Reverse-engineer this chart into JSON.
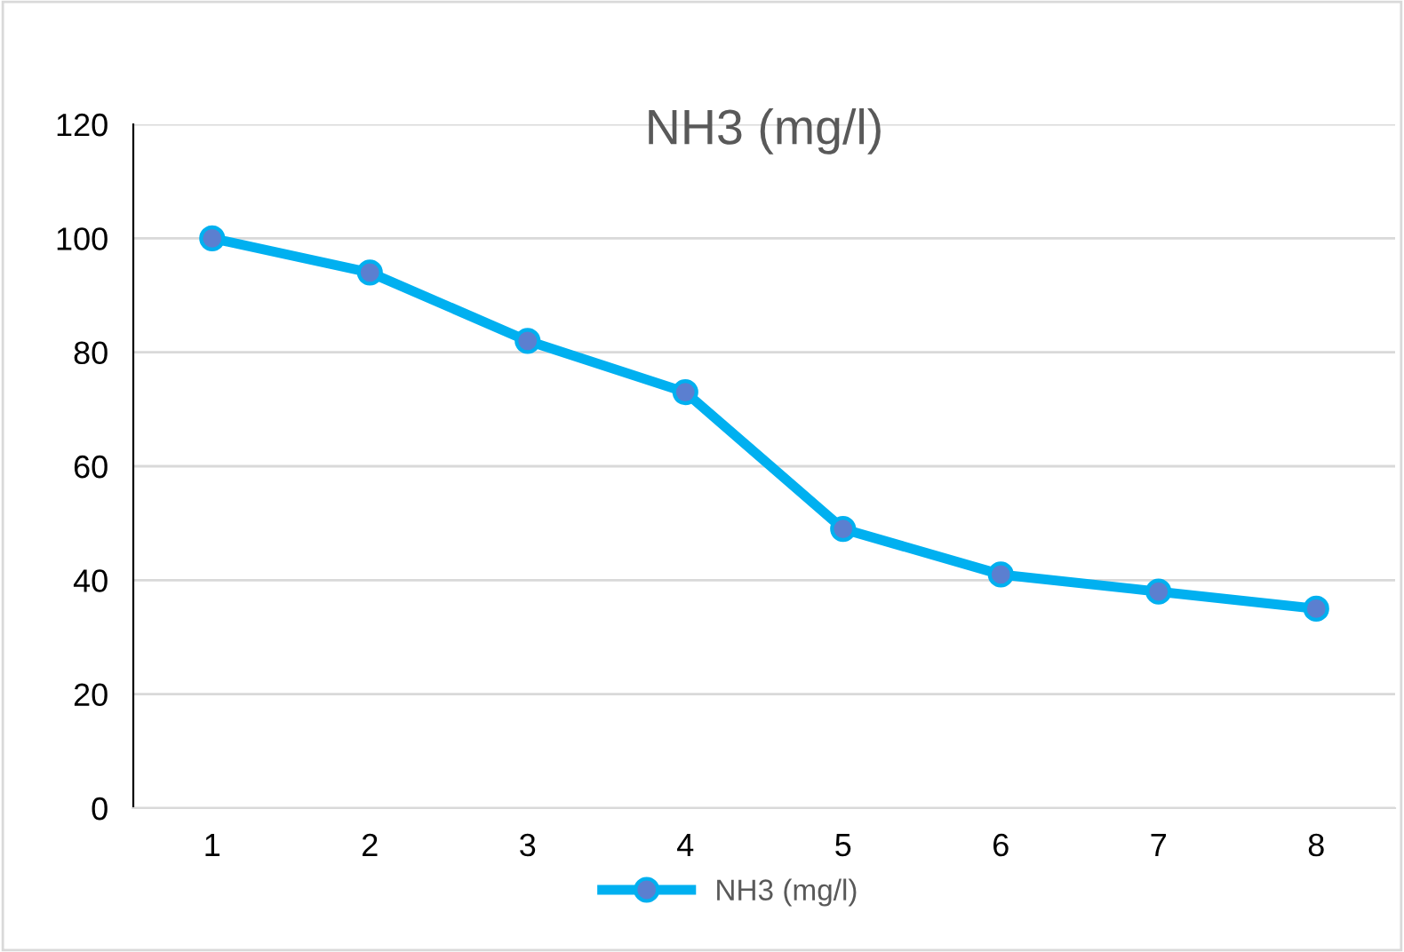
{
  "chart_data": {
    "type": "line",
    "title": "NH3 (mg/l)",
    "categories": [
      "1",
      "2",
      "3",
      "4",
      "5",
      "6",
      "7",
      "8"
    ],
    "series": [
      {
        "name": "NH3 (mg/l)",
        "color": "#00b0f0",
        "values": [
          100,
          94,
          82,
          73,
          49,
          41,
          38,
          35
        ]
      }
    ],
    "ylim": [
      0,
      120
    ],
    "yticks": [
      0,
      20,
      40,
      60,
      80,
      100,
      120
    ],
    "grid": "y",
    "legend": "bottom",
    "marker": "circle",
    "line_style": "solid"
  }
}
